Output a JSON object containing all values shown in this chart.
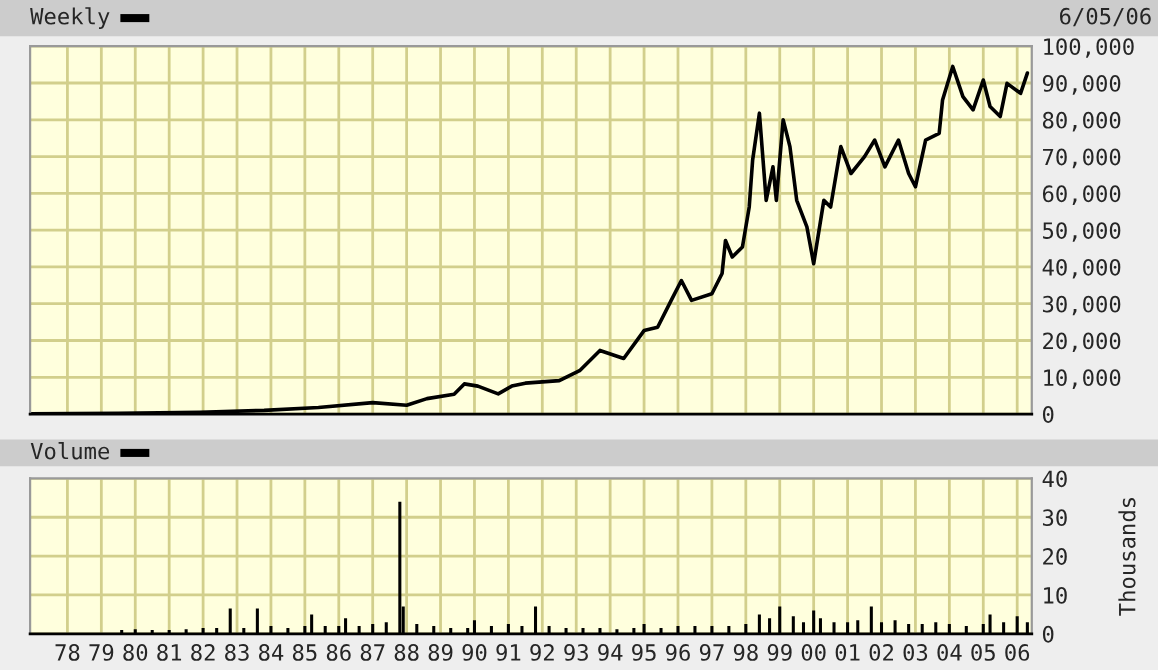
{
  "chart_data": [
    {
      "type": "line",
      "title": "Weekly",
      "annotations": [
        "6/05/06"
      ],
      "series": [
        {
          "color": "#000000",
          "x": [
            1976.9,
            1979.5,
            1981.9,
            1983.8,
            1985.4,
            1987.0,
            1988.0,
            1988.6,
            1989.4,
            1989.7,
            1990.1,
            1990.7,
            1991.1,
            1991.5,
            1992.5,
            1993.1,
            1993.7,
            1994.4,
            1995.0,
            1995.4,
            1995.8,
            1996.1,
            1996.4,
            1997.0,
            1997.3,
            1997.4,
            1997.6,
            1997.9,
            1998.1,
            1998.2,
            1998.4,
            1998.6,
            1998.8,
            1998.9,
            1999.1,
            1999.3,
            1999.5,
            1999.8,
            2000.0,
            2000.3,
            2000.5,
            2000.8,
            2001.1,
            2001.5,
            2001.8,
            2002.1,
            2002.5,
            2002.8,
            2003.0,
            2003.3,
            2003.7,
            2003.8,
            2004.1,
            2004.4,
            2004.7,
            2005.0,
            2005.2,
            2005.5,
            2005.7,
            2006.1,
            2006.3
          ],
          "values": [
            100,
            200,
            500,
            1000,
            1800,
            3100,
            2400,
            4200,
            5400,
            8200,
            7600,
            5500,
            7600,
            8400,
            9100,
            11800,
            17300,
            15100,
            22700,
            23600,
            30900,
            36300,
            30900,
            32700,
            38200,
            47200,
            42700,
            45400,
            56300,
            69000,
            81800,
            58100,
            67200,
            58100,
            80000,
            72700,
            58100,
            50900,
            40900,
            58100,
            56300,
            72700,
            65400,
            70000,
            74500,
            67200,
            74500,
            65400,
            61800,
            74500,
            76300,
            85400,
            94500,
            86300,
            82700,
            90800,
            83600,
            80900,
            89900,
            87200,
            92700
          ]
        }
      ],
      "xlim": [
        1976.9,
        2006.43
      ],
      "xticks": [
        1978,
        1979,
        1980,
        1981,
        1982,
        1983,
        1984,
        1985,
        1986,
        1987,
        1988,
        1989,
        1990,
        1991,
        1992,
        1993,
        1994,
        1995,
        1996,
        1997,
        1998,
        1999,
        2000,
        2001,
        2002,
        2003,
        2004,
        2005,
        2006
      ],
      "ylim": [
        0,
        100000
      ],
      "yticks": [
        0,
        {
          "value": 10000,
          "label": "10,000"
        },
        {
          "value": 20000,
          "label": "20,000"
        },
        {
          "value": 30000,
          "label": "30,000"
        },
        {
          "value": 40000,
          "label": "40,000"
        },
        {
          "value": 50000,
          "label": "50,000"
        },
        {
          "value": 60000,
          "label": "60,000"
        },
        {
          "value": 70000,
          "label": "70,000"
        },
        {
          "value": 80000,
          "label": "80,000"
        },
        {
          "value": 90000,
          "label": "90,000"
        },
        {
          "value": 100000,
          "label": "100,000"
        }
      ],
      "tick_labels": "y",
      "grid": true,
      "legend": false
    },
    {
      "type": "bar",
      "title": "Volume",
      "ylabel": "Thousands",
      "series": [
        {
          "color": "#000000",
          "x": [
            1979.6,
            1980.0,
            1980.5,
            1981.0,
            1981.5,
            1982.0,
            1982.4,
            1982.8,
            1983.2,
            1983.6,
            1984.0,
            1984.5,
            1985.0,
            1985.2,
            1985.6,
            1986.0,
            1986.2,
            1986.6,
            1987.0,
            1987.4,
            1987.8,
            1987.9,
            1988.3,
            1988.8,
            1989.3,
            1989.8,
            1990.0,
            1990.5,
            1991.0,
            1991.4,
            1991.8,
            1992.2,
            1992.7,
            1993.2,
            1993.7,
            1994.2,
            1994.7,
            1995.0,
            1995.5,
            1996.0,
            1996.5,
            1997.0,
            1997.5,
            1998.0,
            1998.4,
            1998.7,
            1999.0,
            1999.4,
            1999.7,
            2000.0,
            2000.2,
            2000.6,
            2001.0,
            2001.3,
            2001.7,
            2002.0,
            2002.4,
            2002.8,
            2003.2,
            2003.6,
            2004.0,
            2004.5,
            2005.0,
            2005.2,
            2005.6,
            2006.0,
            2006.3
          ],
          "values": [
            1,
            1.2,
            1,
            1,
            1.2,
            1.5,
            1.5,
            6.5,
            1.5,
            6.5,
            2,
            1.5,
            2,
            5,
            2,
            2,
            4,
            2,
            2.5,
            3,
            34,
            7,
            2.5,
            2,
            1.5,
            1.5,
            3.5,
            2,
            2.5,
            2,
            7,
            2,
            1.5,
            1.5,
            1.5,
            1.2,
            1.5,
            2.5,
            1.5,
            2,
            2,
            2,
            2,
            2.5,
            5,
            4,
            7,
            4.5,
            3,
            6,
            4,
            3,
            3,
            3.5,
            7,
            3,
            3.5,
            2.5,
            2.5,
            3,
            2.5,
            2,
            2.5,
            5,
            3,
            4.5,
            3
          ]
        }
      ],
      "xlim": [
        1976.9,
        2006.43
      ],
      "xticks": [
        {
          "value": 1978,
          "label": "78"
        },
        {
          "value": 1979,
          "label": "79"
        },
        {
          "value": 1980,
          "label": "80"
        },
        {
          "value": 1981,
          "label": "81"
        },
        {
          "value": 1982,
          "label": "82"
        },
        {
          "value": 1983,
          "label": "83"
        },
        {
          "value": 1984,
          "label": "84"
        },
        {
          "value": 1985,
          "label": "85"
        },
        {
          "value": 1986,
          "label": "86"
        },
        {
          "value": 1987,
          "label": "87"
        },
        {
          "value": 1988,
          "label": "88"
        },
        {
          "value": 1989,
          "label": "89"
        },
        {
          "value": 1990,
          "label": "90"
        },
        {
          "value": 1991,
          "label": "91"
        },
        {
          "value": 1992,
          "label": "92"
        },
        {
          "value": 1993,
          "label": "93"
        },
        {
          "value": 1994,
          "label": "94"
        },
        {
          "value": 1995,
          "label": "95"
        },
        {
          "value": 1996,
          "label": "96"
        },
        {
          "value": 1997,
          "label": "97"
        },
        {
          "value": 1998,
          "label": "98"
        },
        {
          "value": 1999,
          "label": "99"
        },
        {
          "value": 2000,
          "label": "00"
        },
        {
          "value": 2001,
          "label": "01"
        },
        {
          "value": 2002,
          "label": "02"
        },
        {
          "value": 2003,
          "label": "03"
        },
        {
          "value": 2004,
          "label": "04"
        },
        {
          "value": 2005,
          "label": "05"
        },
        {
          "value": 2006,
          "label": "06"
        }
      ],
      "ylim": [
        0,
        40
      ],
      "yticks": [
        0,
        10,
        20,
        30,
        40
      ],
      "grid": true,
      "legend": false
    }
  ]
}
